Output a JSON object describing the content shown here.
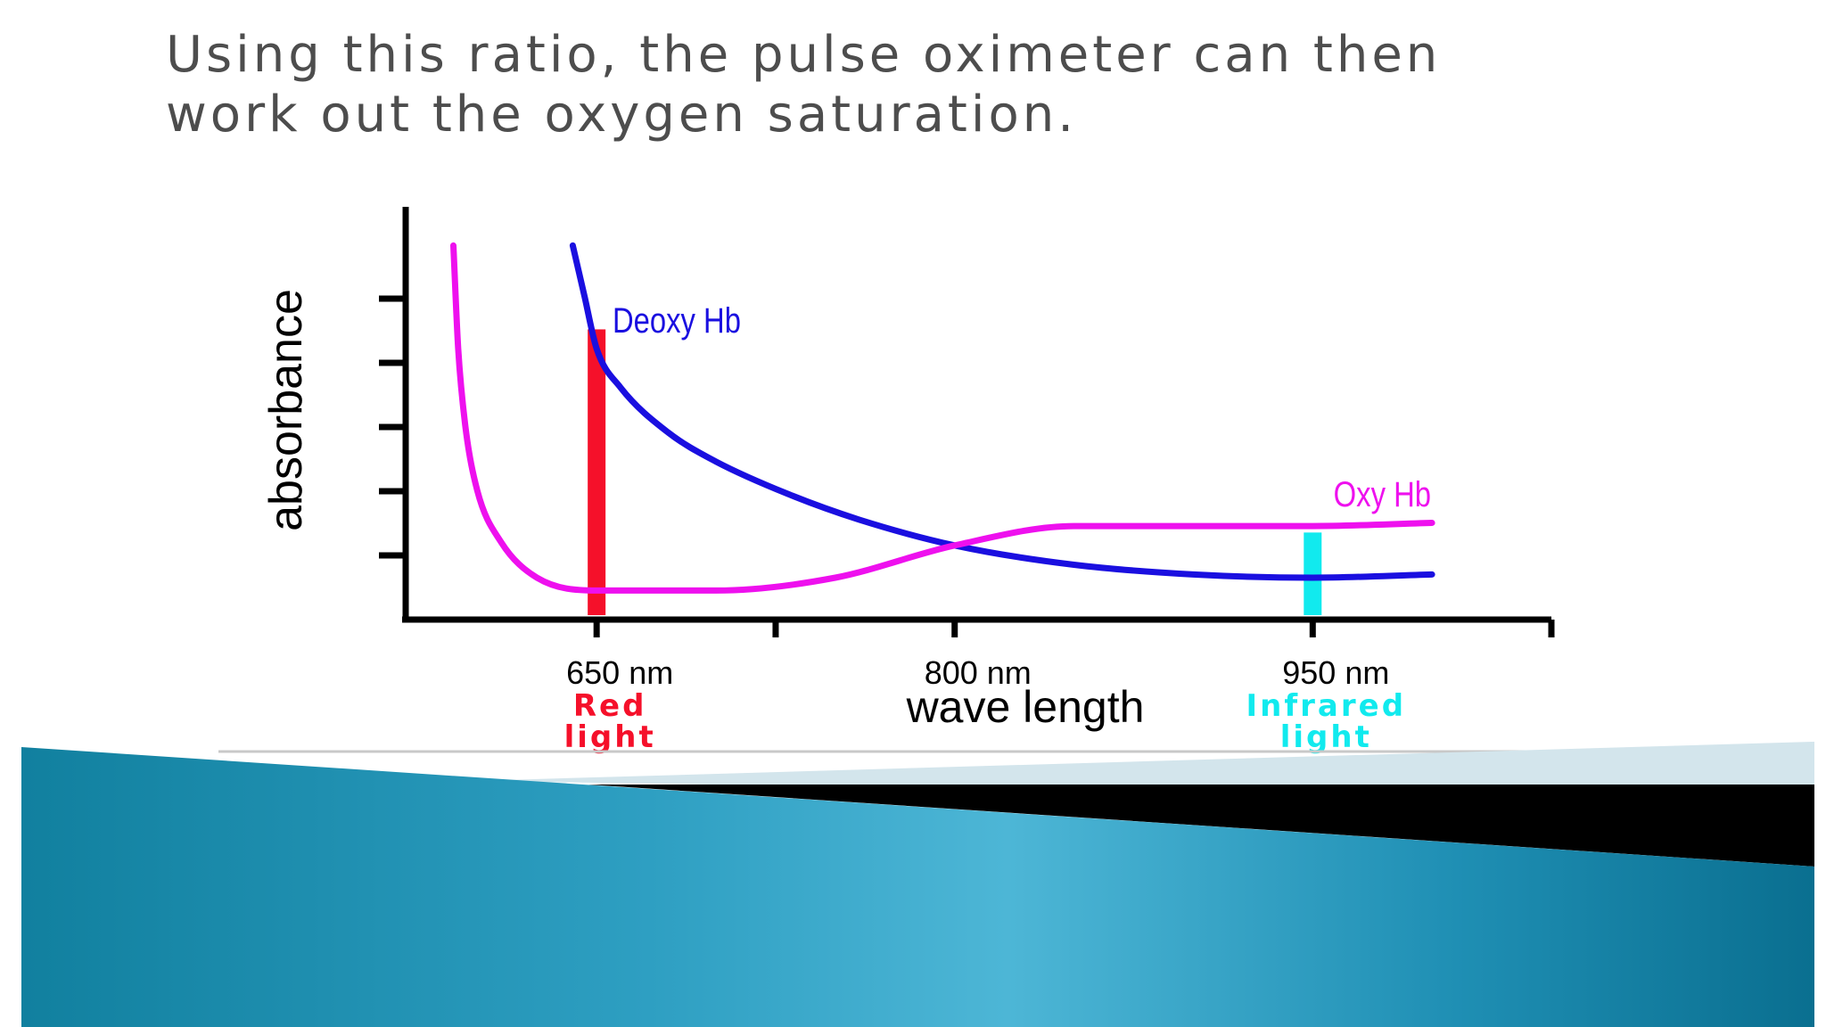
{
  "slide": {
    "title_lines": [
      "Using this ratio, the pulse oximeter can then",
      "work out the oxygen saturation."
    ]
  },
  "chart_data": {
    "type": "line",
    "xlabel": "wave length",
    "ylabel": "absorbance",
    "x_ticks": [
      {
        "label": "650 nm",
        "x": 650
      },
      {
        "label": "800 nm",
        "x": 800
      },
      {
        "label": "950 nm",
        "x": 950
      }
    ],
    "x_range": [
      570,
      1050
    ],
    "y_range": [
      0,
      6.4
    ],
    "y_tick_count": 5,
    "grid": false,
    "series": [
      {
        "name": "Deoxy Hb",
        "color": "#1a0fe0",
        "x": [
          640,
          645,
          650,
          660,
          680,
          700,
          730,
          760,
          800,
          850,
          900,
          950,
          1000
        ],
        "y": [
          5.8,
          5.0,
          4.2,
          3.6,
          2.9,
          2.45,
          1.95,
          1.55,
          1.15,
          0.85,
          0.7,
          0.65,
          0.7
        ]
      },
      {
        "name": "Oxy Hb",
        "color": "#ee10ee",
        "x": [
          590,
          592,
          595,
          600,
          610,
          625,
          650,
          700,
          750,
          800,
          850,
          900,
          950,
          1000
        ],
        "y": [
          5.8,
          4.2,
          3.0,
          2.0,
          1.2,
          0.65,
          0.45,
          0.45,
          0.65,
          1.15,
          1.45,
          1.45,
          1.45,
          1.5
        ]
      }
    ],
    "bands": [
      {
        "x": 650,
        "y_top": 4.5,
        "color": "#f5102a",
        "label_lines": [
          "Red",
          "light"
        ]
      },
      {
        "x": 950,
        "y_top": 1.35,
        "color": "#11eaee",
        "label_lines": [
          "Infrared",
          "light"
        ]
      }
    ]
  }
}
